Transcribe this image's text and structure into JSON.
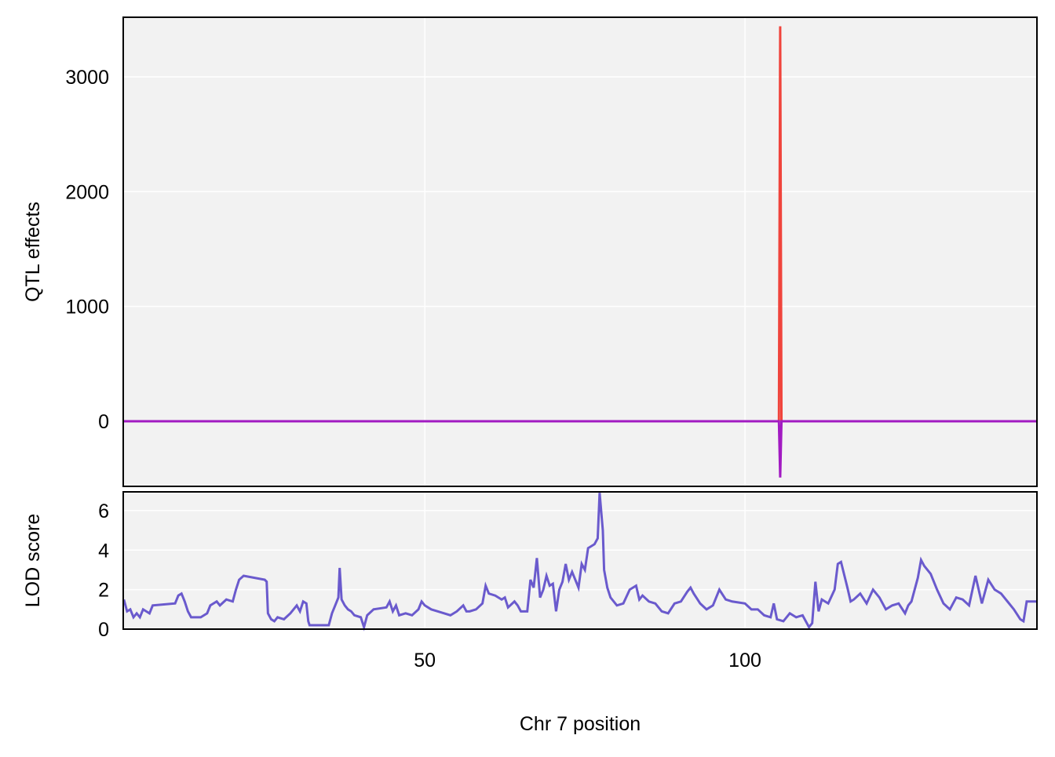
{
  "chart_data": [
    {
      "type": "line",
      "ylabel": "QTL effects",
      "x": [
        2.9,
        50,
        105.3,
        105.5,
        105.7,
        145.6
      ],
      "series": [
        {
          "color": "#f0443c",
          "values": [
            0,
            0,
            0,
            3440,
            0,
            0
          ]
        },
        {
          "color": "#a21ac2",
          "values": [
            0,
            0,
            0,
            -490,
            0,
            0
          ]
        }
      ],
      "xlim": [
        2.9,
        145.6
      ],
      "xticks": [
        50,
        100
      ],
      "ylim": [
        -567,
        3519
      ],
      "yticks": [
        0,
        1000,
        2000,
        3000
      ],
      "grid": true
    },
    {
      "type": "line",
      "ylabel": "LOD score",
      "xlabel": "Chr 7 position",
      "x": [
        3,
        3.5,
        4,
        4.5,
        5,
        5.5,
        6,
        6.5,
        7,
        7.5,
        11,
        11.5,
        12,
        12.5,
        13,
        13.5,
        15,
        16,
        16.5,
        17.5,
        18,
        19,
        20,
        20.5,
        21,
        21.7,
        25,
        25.3,
        25.5,
        26,
        26.5,
        27,
        28,
        29,
        29.5,
        30,
        30.5,
        31,
        31.5,
        31.8,
        32,
        35,
        35.5,
        36,
        36.5,
        36.7,
        37,
        37.5,
        38,
        38.5,
        39,
        40,
        40.5,
        41,
        42,
        44,
        44.5,
        45,
        45.5,
        46,
        47,
        48,
        49,
        49.5,
        50,
        51,
        52,
        53,
        54,
        55,
        56,
        56.5,
        57,
        58,
        59,
        59.5,
        60,
        61,
        62,
        62.5,
        63,
        64,
        64.5,
        65,
        66,
        66.5,
        67,
        67.5,
        68,
        68.5,
        69,
        69.5,
        70,
        70.5,
        71,
        71.5,
        72,
        72.5,
        73,
        73.5,
        74,
        74.5,
        75,
        75.5,
        76.5,
        77,
        77.3,
        77.8,
        78,
        78.5,
        79,
        80,
        81,
        82,
        83,
        83.5,
        84,
        85,
        86,
        86.5,
        87,
        88,
        89,
        90,
        91,
        91.5,
        92,
        93,
        94,
        95,
        96,
        97,
        98,
        100,
        101,
        102,
        103,
        104,
        104.5,
        105,
        106,
        107,
        108,
        109,
        110,
        110.5,
        111,
        111.5,
        112,
        113,
        114,
        114.5,
        115,
        116,
        116.5,
        117,
        118,
        119,
        120,
        121,
        122,
        123,
        124,
        125,
        125.5,
        126,
        127,
        127.5,
        128,
        129,
        130,
        131,
        132,
        133,
        134,
        135,
        136,
        137,
        138,
        139,
        140,
        141,
        142,
        143,
        143.5,
        144,
        145.6
      ],
      "series": [
        {
          "color": "#6a5acd",
          "values": [
            1.5,
            0.9,
            1.0,
            0.6,
            0.8,
            0.6,
            1.0,
            0.9,
            0.8,
            1.2,
            1.3,
            1.7,
            1.8,
            1.4,
            0.9,
            0.6,
            0.6,
            0.8,
            1.2,
            1.4,
            1.2,
            1.5,
            1.4,
            2.0,
            2.5,
            2.7,
            2.5,
            2.4,
            0.8,
            0.5,
            0.4,
            0.6,
            0.5,
            0.8,
            1.0,
            1.2,
            0.9,
            1.4,
            1.3,
            0.4,
            0.2,
            0.2,
            0.8,
            1.2,
            1.6,
            3.1,
            1.5,
            1.2,
            1.0,
            0.9,
            0.7,
            0.6,
            0.1,
            0.7,
            1.0,
            1.1,
            1.4,
            0.9,
            1.2,
            0.7,
            0.8,
            0.7,
            1.0,
            1.4,
            1.2,
            1.0,
            0.9,
            0.8,
            0.7,
            0.9,
            1.2,
            0.9,
            0.9,
            1.0,
            1.3,
            2.2,
            1.8,
            1.7,
            1.5,
            1.6,
            1.1,
            1.4,
            1.2,
            0.9,
            0.9,
            2.5,
            2.1,
            3.6,
            1.6,
            2.0,
            2.7,
            2.2,
            2.3,
            0.9,
            2.0,
            2.4,
            3.3,
            2.5,
            2.9,
            2.5,
            2.1,
            3.3,
            3.0,
            4.1,
            4.3,
            4.6,
            6.9,
            5.0,
            3.0,
            2.1,
            1.6,
            1.2,
            1.3,
            2.0,
            2.2,
            1.5,
            1.7,
            1.4,
            1.3,
            1.1,
            0.9,
            0.8,
            1.3,
            1.4,
            1.9,
            2.1,
            1.8,
            1.3,
            1.0,
            1.2,
            2.0,
            1.5,
            1.4,
            1.3,
            1.0,
            1.0,
            0.7,
            0.6,
            1.3,
            0.5,
            0.4,
            0.8,
            0.6,
            0.7,
            0.1,
            0.3,
            2.4,
            0.9,
            1.5,
            1.3,
            2.0,
            3.3,
            3.4,
            2.1,
            1.4,
            1.5,
            1.8,
            1.3,
            2.0,
            1.6,
            1.0,
            1.2,
            1.3,
            0.8,
            1.2,
            1.4,
            2.6,
            3.5,
            3.2,
            2.8,
            2.0,
            1.3,
            1.0,
            1.6,
            1.5,
            1.2,
            2.7,
            1.3,
            2.5,
            2.0,
            1.8,
            1.4,
            1.0,
            0.5,
            0.4,
            1.4,
            1.4
          ]
        }
      ],
      "xlim": [
        2.9,
        145.6
      ],
      "xticks": [
        50,
        100
      ],
      "ylim": [
        0,
        6.95
      ],
      "yticks": [
        0,
        2,
        4,
        6
      ],
      "grid": true
    }
  ]
}
